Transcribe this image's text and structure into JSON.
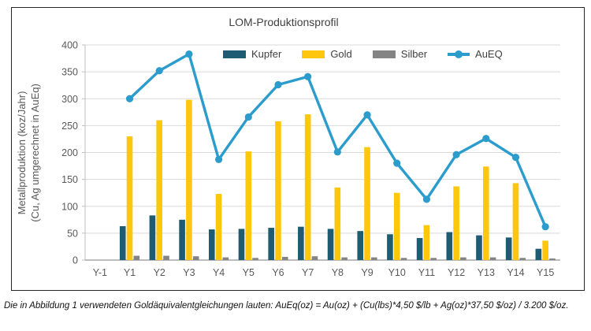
{
  "chart_data": {
    "type": "bar+line",
    "title": "LOM-Produktionsprofil",
    "categories": [
      "Y-1",
      "Y1",
      "Y2",
      "Y3",
      "Y4",
      "Y5",
      "Y6",
      "Y7",
      "Y8",
      "Y9",
      "Y10",
      "Y11",
      "Y12",
      "Y13",
      "Y14",
      "Y15"
    ],
    "series": [
      {
        "name": "Kupfer",
        "type": "bar",
        "color": "#1E5C74",
        "values": [
          0,
          63,
          83,
          75,
          57,
          58,
          60,
          62,
          58,
          54,
          48,
          41,
          52,
          46,
          42,
          21
        ]
      },
      {
        "name": "Gold",
        "type": "bar",
        "color": "#FEC60D",
        "values": [
          0,
          230,
          260,
          298,
          123,
          202,
          258,
          271,
          135,
          210,
          125,
          65,
          137,
          174,
          143,
          36
        ]
      },
      {
        "name": "Silber",
        "type": "bar",
        "color": "#848484",
        "values": [
          0,
          8,
          8,
          7,
          5,
          4,
          6,
          7,
          5,
          5,
          4,
          4,
          5,
          5,
          4,
          3
        ]
      },
      {
        "name": "AuEQ",
        "type": "line",
        "color": "#2B9CCC",
        "values": [
          null,
          300,
          352,
          383,
          187,
          266,
          326,
          341,
          201,
          270,
          180,
          113,
          196,
          226,
          191,
          62
        ]
      }
    ],
    "ylabel_line1": "Metallproduktion (koz/Jahr)",
    "ylabel_line2": "(Cu, Ag umgerechnet in AuEq)",
    "xlabel": "",
    "ylim": [
      0,
      400
    ],
    "ytick_step": 50,
    "grid": true,
    "legend_position": "top"
  },
  "colors": {
    "grid": "#D9D9D9",
    "axis_left": "#BFBFBF",
    "axis_bottom": "#A6A6A6",
    "tick_label": "#595959",
    "axis_title": "#595959",
    "title_text": "#404040",
    "box_border": "#262626"
  },
  "footnote": {
    "text": "Die in Abbildung 1 verwendeten Goldäquivalentgleichungen lauten: AuEq(oz) = Au(oz) + (Cu(lbs)*4,50 $/lb + Ag(oz)*37,50 $/oz) / 3.200 $/oz."
  }
}
